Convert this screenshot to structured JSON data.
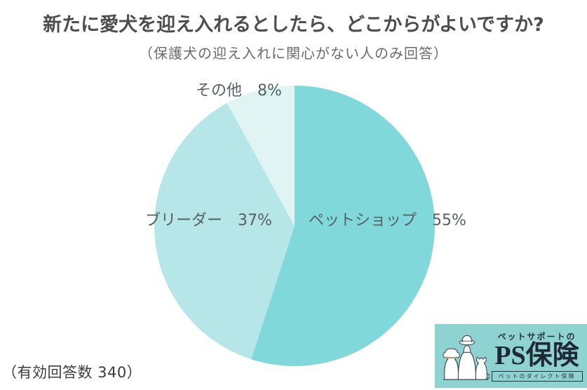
{
  "chart_data": {
    "type": "pie",
    "title": "新たに愛犬を迎え入れるとしたら、どこからがよいですか?",
    "subtitle": "（保護犬の迎え入れに関心がない人のみ回答）",
    "footnote": "（有効回答数 340）",
    "valid_responses": 340,
    "start_angle_deg": 0,
    "direction": "clockwise",
    "legend_position": "on-slice",
    "slices": [
      {
        "id": "pet-shop",
        "label": "ペットショップ",
        "value": 55,
        "value_label": "55%",
        "color": "#80d8db"
      },
      {
        "id": "breeder",
        "label": "ブリーダー",
        "value": 37,
        "value_label": "37%",
        "color": "#b6e6e7"
      },
      {
        "id": "other",
        "label": "その他",
        "value": 8,
        "value_label": "8%",
        "color": "#e1f4f4"
      }
    ]
  },
  "logo": {
    "tagline_top": "ペットサポートの",
    "brand_name": "PS保険",
    "tagline_bottom": "ペットのダイレクト保険",
    "bg_color": "#8ed2d2",
    "text_color": "#27303d",
    "illustration": "owner-with-dog-and-cat"
  }
}
